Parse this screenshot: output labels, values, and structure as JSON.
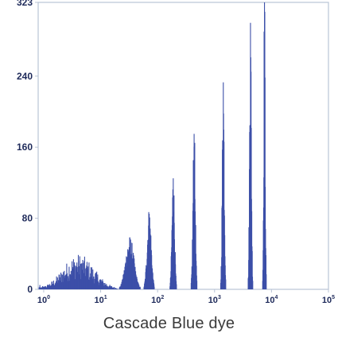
{
  "chart_data": {
    "type": "bar",
    "title": "",
    "xlabel": "Cascade Blue dye",
    "ylabel": "",
    "x_scale": "log",
    "xlim": [
      0.8,
      100000
    ],
    "ylim": [
      0,
      323
    ],
    "yticks": [
      0,
      80,
      160,
      240,
      323
    ],
    "ytick_labels": [
      "0",
      "80",
      "160",
      "240",
      "323"
    ],
    "xticks": [
      1,
      10,
      100,
      1000,
      10000,
      100000
    ],
    "xtick_labels": [
      {
        "base": "10",
        "exp": "0"
      },
      {
        "base": "10",
        "exp": "1"
      },
      {
        "base": "10",
        "exp": "2"
      },
      {
        "base": "10",
        "exp": "3"
      },
      {
        "base": "10",
        "exp": "4"
      },
      {
        "base": "10",
        "exp": "5"
      }
    ],
    "grid": false,
    "series": [
      {
        "color": "#3c4fa8",
        "peaks": [
          {
            "center": 4.0,
            "peak_count": 32,
            "width_decades": 0.6
          },
          {
            "center": 32,
            "peak_count": 55,
            "width_decades": 0.16
          },
          {
            "center": 70,
            "peak_count": 85,
            "width_decades": 0.08
          },
          {
            "center": 185,
            "peak_count": 125,
            "width_decades": 0.05
          },
          {
            "center": 430,
            "peak_count": 175,
            "width_decades": 0.045
          },
          {
            "center": 1400,
            "peak_count": 233,
            "width_decades": 0.04
          },
          {
            "center": 4200,
            "peak_count": 300,
            "width_decades": 0.035
          },
          {
            "center": 7400,
            "peak_count": 323,
            "width_decades": 0.028
          }
        ]
      }
    ]
  }
}
